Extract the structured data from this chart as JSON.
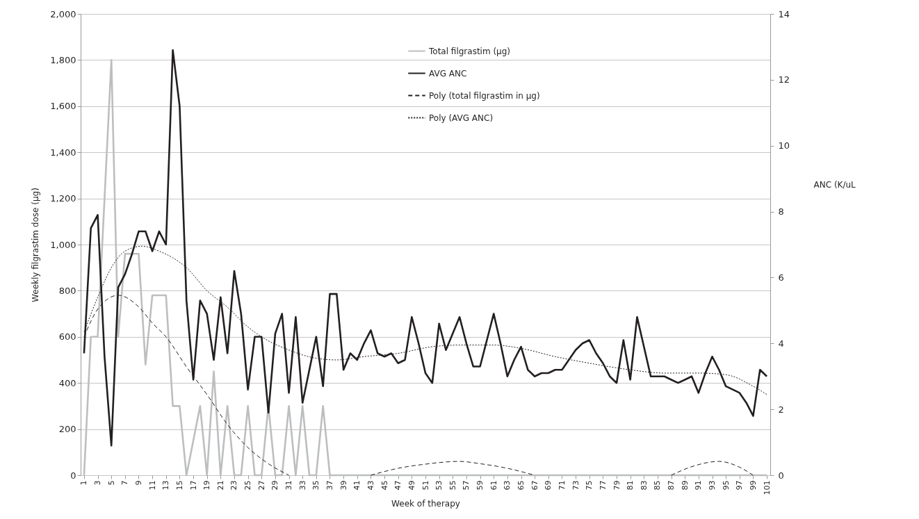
{
  "chart_data": {
    "type": "line",
    "xlabel": "Week of therapy",
    "ylabel": "Weekly filgrastim dose (μg)",
    "y2label": "ANC (K/uL",
    "x": [
      1,
      2,
      3,
      4,
      5,
      6,
      7,
      8,
      9,
      10,
      11,
      12,
      13,
      14,
      15,
      16,
      17,
      18,
      19,
      20,
      21,
      22,
      23,
      24,
      25,
      26,
      27,
      28,
      29,
      30,
      31,
      32,
      33,
      34,
      35,
      36,
      37,
      38,
      39,
      40,
      41,
      42,
      43,
      44,
      45,
      46,
      47,
      48,
      49,
      50,
      51,
      52,
      53,
      54,
      55,
      56,
      57,
      58,
      59,
      60,
      61,
      62,
      63,
      64,
      65,
      66,
      67,
      68,
      69,
      70,
      71,
      72,
      73,
      74,
      75,
      76,
      77,
      78,
      79,
      80,
      81,
      82,
      83,
      84,
      85,
      86,
      87,
      88,
      89,
      90,
      91,
      92,
      93,
      94,
      95,
      96,
      97,
      98,
      99,
      100,
      101
    ],
    "xlim": [
      0.5,
      101.5
    ],
    "xticks": [
      1,
      3,
      5,
      7,
      9,
      11,
      13,
      15,
      17,
      19,
      21,
      23,
      25,
      27,
      29,
      31,
      33,
      35,
      37,
      39,
      41,
      43,
      45,
      47,
      49,
      51,
      53,
      55,
      57,
      59,
      61,
      63,
      65,
      67,
      69,
      71,
      73,
      75,
      77,
      79,
      81,
      83,
      85,
      87,
      89,
      91,
      93,
      95,
      97,
      99,
      101
    ],
    "ylim": [
      0,
      2000
    ],
    "yticks": [
      0,
      200,
      400,
      600,
      800,
      {
        "value": 1000,
        "label": "1,000"
      },
      {
        "value": 1200,
        "label": "1,200"
      },
      {
        "value": 1400,
        "label": "1,400"
      },
      {
        "value": 1600,
        "label": "1,600"
      },
      {
        "value": 1800,
        "label": "1,800"
      },
      {
        "value": 2000,
        "label": "2,000"
      }
    ],
    "y2lim": [
      0,
      14
    ],
    "y2ticks": [
      0,
      2,
      4,
      6,
      8,
      10,
      12,
      14
    ],
    "grid": "y",
    "legend": "top",
    "line_style": "solid",
    "series": [
      {
        "name": "Total filgrastim (μg)",
        "color": "#bcbec0",
        "values": [
          0,
          600,
          600,
          1200,
          1800,
          600,
          960,
          960,
          960,
          480,
          780,
          780,
          780,
          300,
          300,
          0,
          150,
          300,
          0,
          450,
          0,
          300,
          0,
          0,
          300,
          0,
          0,
          300,
          0,
          0,
          300,
          0,
          300,
          0,
          0,
          300,
          0,
          0,
          0,
          0,
          0,
          0,
          0,
          0,
          0,
          0,
          0,
          0,
          0,
          0,
          0,
          0,
          0,
          0,
          0,
          0,
          0,
          0,
          0,
          0,
          0,
          0,
          0,
          0,
          0,
          0,
          0,
          0,
          0,
          0,
          0,
          0,
          0,
          0,
          0,
          0,
          0,
          0,
          0,
          0,
          0,
          0,
          0,
          0,
          0,
          0,
          0,
          0,
          0,
          0,
          0,
          0,
          0,
          0,
          0,
          0,
          0,
          0,
          0,
          0,
          0
        ]
      },
      {
        "name": "AVG ANC",
        "color": "#231f20",
        "axis": "y2",
        "values": [
          3.7,
          7.5,
          7.9,
          3.6,
          0.9,
          5.7,
          6.1,
          6.7,
          7.4,
          7.4,
          6.8,
          7.4,
          7.0,
          12.9,
          11.2,
          5.3,
          2.9,
          5.3,
          4.9,
          3.5,
          5.4,
          3.7,
          6.2,
          4.9,
          2.6,
          4.2,
          4.2,
          1.9,
          4.3,
          4.9,
          2.5,
          4.8,
          2.2,
          3.2,
          4.2,
          2.7,
          5.5,
          5.5,
          3.2,
          3.7,
          3.5,
          4.0,
          4.4,
          3.7,
          3.6,
          3.7,
          3.4,
          3.5,
          4.8,
          4.0,
          3.1,
          2.8,
          4.6,
          3.8,
          4.3,
          4.8,
          4.0,
          3.3,
          3.3,
          4.1,
          4.9,
          4.0,
          3.0,
          3.5,
          3.9,
          3.2,
          3.0,
          3.1,
          3.1,
          3.2,
          3.2,
          3.5,
          3.8,
          4.0,
          4.1,
          3.7,
          3.4,
          3.0,
          2.8,
          4.1,
          2.9,
          4.8,
          3.9,
          3.0,
          3.0,
          3.0,
          2.9,
          2.8,
          2.9,
          3.0,
          2.5,
          3.1,
          3.6,
          3.2,
          2.7,
          2.6,
          2.5,
          2.2,
          1.8,
          3.2,
          3.0
        ]
      },
      {
        "name": "Poly (total filgrastim in μg)",
        "type": "line",
        "line_style": "dashed",
        "color": "#231f20",
        "x": [
          1,
          3,
          6,
          9,
          11,
          13,
          16,
          19,
          22,
          25,
          28,
          31,
          37,
          43,
          47,
          51,
          56,
          59,
          63,
          67,
          77,
          87,
          90,
          94,
          97,
          99
        ],
        "values": [
          600,
          720,
          780,
          730,
          660,
          600,
          470,
          350,
          220,
          120,
          50,
          0,
          null,
          0,
          30,
          48,
          60,
          50,
          30,
          0,
          null,
          0,
          37,
          60,
          35,
          0
        ]
      },
      {
        "name": "Poly (AVG ANC)",
        "type": "line",
        "line_style": "dotted",
        "color": "#231f20",
        "axis": "y2",
        "x": [
          1,
          3,
          5,
          7,
          9.5,
          12,
          14,
          16,
          19,
          22,
          25,
          27,
          31,
          35,
          38,
          42,
          47,
          52,
          56,
          61,
          65,
          70,
          75,
          81,
          86,
          91,
          95,
          99,
          101
        ],
        "values": [
          4.35,
          5.4,
          6.3,
          6.8,
          6.95,
          6.8,
          6.6,
          6.3,
          5.6,
          5.1,
          4.5,
          4.2,
          3.8,
          3.55,
          3.5,
          3.6,
          3.7,
          3.9,
          3.95,
          3.95,
          3.85,
          3.6,
          3.4,
          3.2,
          3.1,
          3.1,
          3.05,
          2.7,
          2.45
        ]
      }
    ]
  }
}
